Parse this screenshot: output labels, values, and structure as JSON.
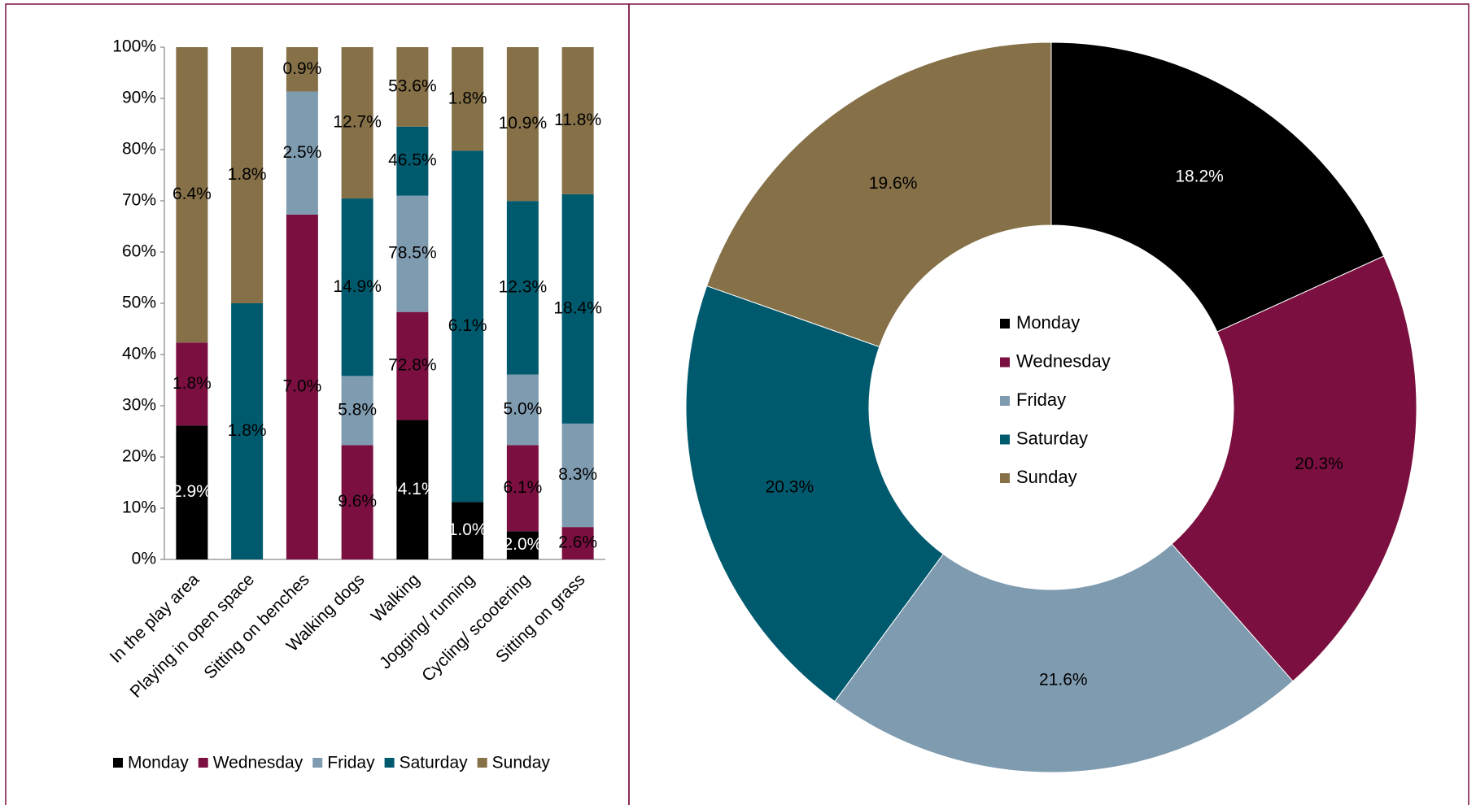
{
  "chart_data": [
    {
      "type": "bar",
      "stacked": "percent",
      "categories": [
        "In the play area",
        "Playing in open space",
        "Sitting on benches",
        "Walking dogs",
        "Walking",
        "Jogging/ running",
        "Cycling/ scootering",
        "Sitting on grass"
      ],
      "series": [
        {
          "name": "Monday",
          "color": "#000000",
          "values": [
            2.9,
            null,
            null,
            null,
            94.1,
            1.0,
            2.0,
            null
          ],
          "value_labels": [
            "2.9%",
            null,
            null,
            null,
            "94.1%",
            "1.0%",
            "2.0%",
            null
          ]
        },
        {
          "name": "Wednesday",
          "color": "#7b1040",
          "values": [
            1.8,
            null,
            7.0,
            9.6,
            72.8,
            null,
            6.1,
            2.6
          ],
          "value_labels": [
            "1.8%",
            null,
            "7.0%",
            "9.6%",
            "72.8%",
            null,
            "6.1%",
            "2.6%"
          ]
        },
        {
          "name": "Friday",
          "color": "#7f9bb0",
          "values": [
            null,
            null,
            2.5,
            5.8,
            78.5,
            null,
            5.0,
            8.3
          ],
          "value_labels": [
            null,
            null,
            "2.5%",
            "5.8%",
            "78.5%",
            null,
            "5.0%",
            "8.3%"
          ]
        },
        {
          "name": "Saturday",
          "color": "#005a6e",
          "values": [
            null,
            1.8,
            null,
            14.9,
            46.5,
            6.1,
            12.3,
            18.4
          ],
          "value_labels": [
            null,
            "1.8%",
            null,
            "14.9%",
            "46.5%",
            "6.1%",
            "12.3%",
            "18.4%"
          ]
        },
        {
          "name": "Sunday",
          "color": "#857048",
          "values": [
            6.4,
            1.8,
            0.9,
            12.7,
            53.6,
            1.8,
            10.9,
            11.8
          ],
          "value_labels": [
            "6.4%",
            "1.8%",
            "0.9%",
            "12.7%",
            "53.6%",
            "1.8%",
            "10.9%",
            "11.8%"
          ]
        }
      ],
      "ylim": [
        0,
        100
      ],
      "yticks": [
        {
          "value": 0,
          "label": "0%"
        },
        {
          "value": 10,
          "label": "10%"
        },
        {
          "value": 20,
          "label": "20%"
        },
        {
          "value": 30,
          "label": "30%"
        },
        {
          "value": 40,
          "label": "40%"
        },
        {
          "value": 50,
          "label": "50%"
        },
        {
          "value": 60,
          "label": "60%"
        },
        {
          "value": 70,
          "label": "70%"
        },
        {
          "value": 80,
          "label": "80%"
        },
        {
          "value": 90,
          "label": "90%"
        },
        {
          "value": 100,
          "label": "100%"
        }
      ],
      "legend": "bottom"
    },
    {
      "type": "pie",
      "donut": true,
      "categories": [
        "Monday",
        "Wednesday",
        "Friday",
        "Saturday",
        "Sunday"
      ],
      "values": [
        18.2,
        20.3,
        21.6,
        20.3,
        19.6
      ],
      "value_labels": [
        "18.2%",
        "20.3%",
        "21.6%",
        "20.3%",
        "19.6%"
      ],
      "colors": [
        "#000000",
        "#7b1040",
        "#7f9bb0",
        "#005a6e",
        "#857048"
      ],
      "legend": "center"
    }
  ]
}
